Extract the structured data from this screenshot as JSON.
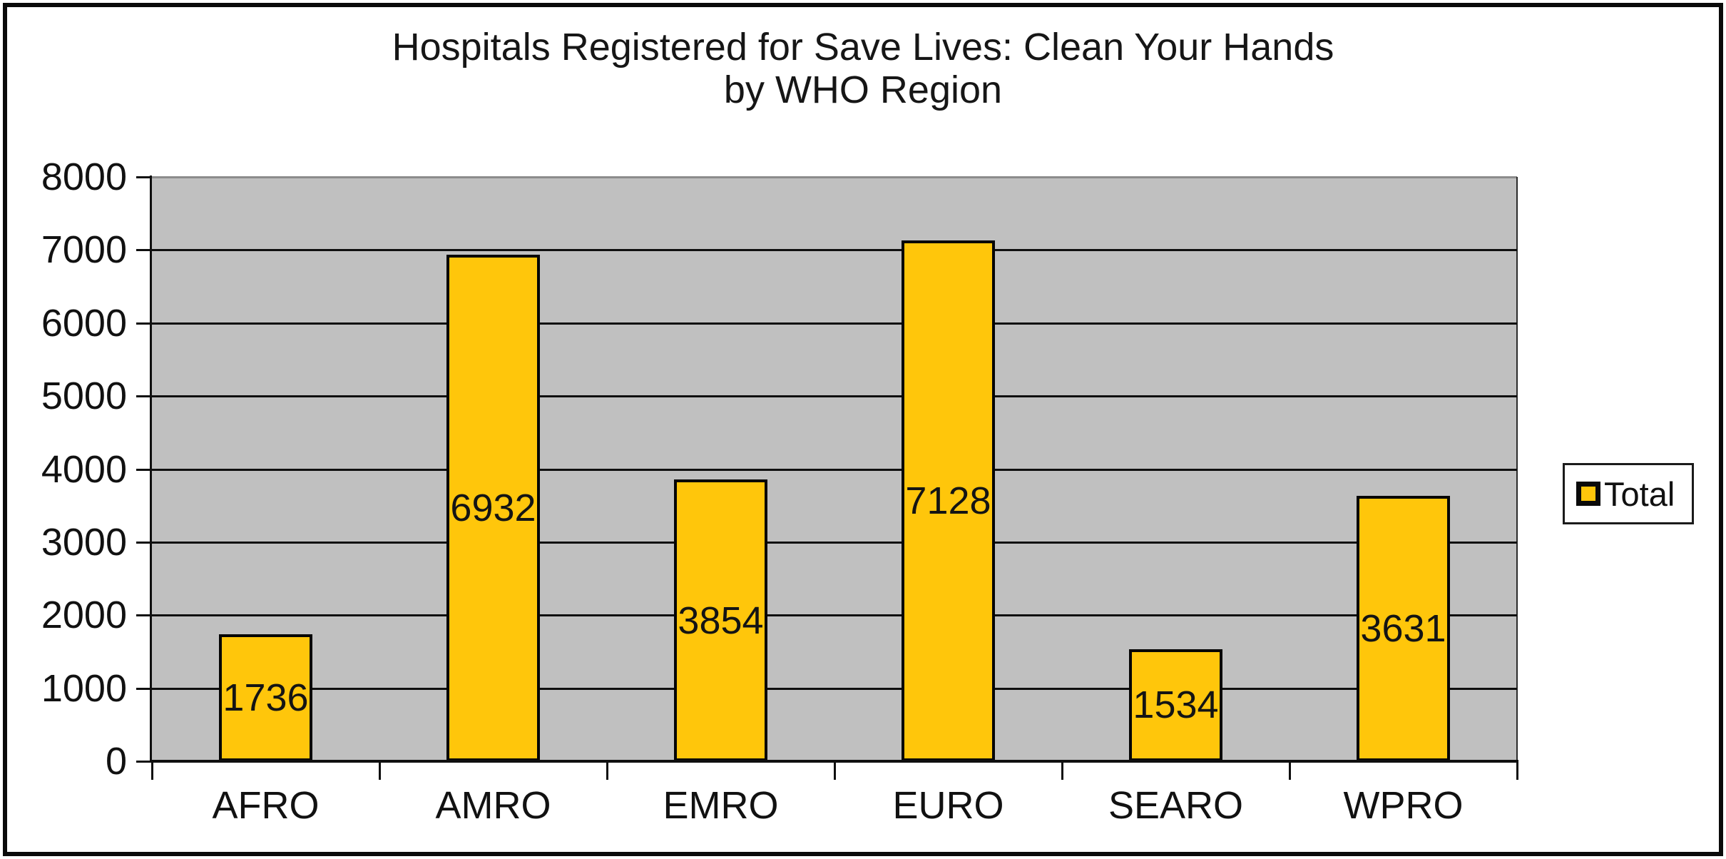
{
  "chart_data": {
    "type": "bar",
    "title_lines": [
      "Hospitals Registered for Save Lives: Clean Your Hands",
      "by WHO Region"
    ],
    "categories": [
      "AFRO",
      "AMRO",
      "EMRO",
      "EURO",
      "SEARO",
      "WPRO"
    ],
    "series": [
      {
        "name": "Total",
        "values": [
          1736,
          6932,
          3854,
          7128,
          1534,
          3631
        ]
      }
    ],
    "data_labels_shown": true,
    "xlabel": "",
    "ylabel": "",
    "ylim": [
      0,
      8000
    ],
    "ytick_step": 1000,
    "ytick_labels": [
      "0",
      "1000",
      "2000",
      "3000",
      "4000",
      "5000",
      "6000",
      "7000",
      "8000"
    ],
    "grid": "horizontal",
    "legend_position": "right",
    "colors": {
      "bar_fill": "#FFC60B",
      "bar_border": "#000000",
      "plot_background": "#C0C0C0",
      "gridline": "#000000",
      "text": "#000000",
      "chart_border": "#000000",
      "canvas": "#FFFFFF"
    }
  },
  "legend": {
    "label": "Total"
  }
}
